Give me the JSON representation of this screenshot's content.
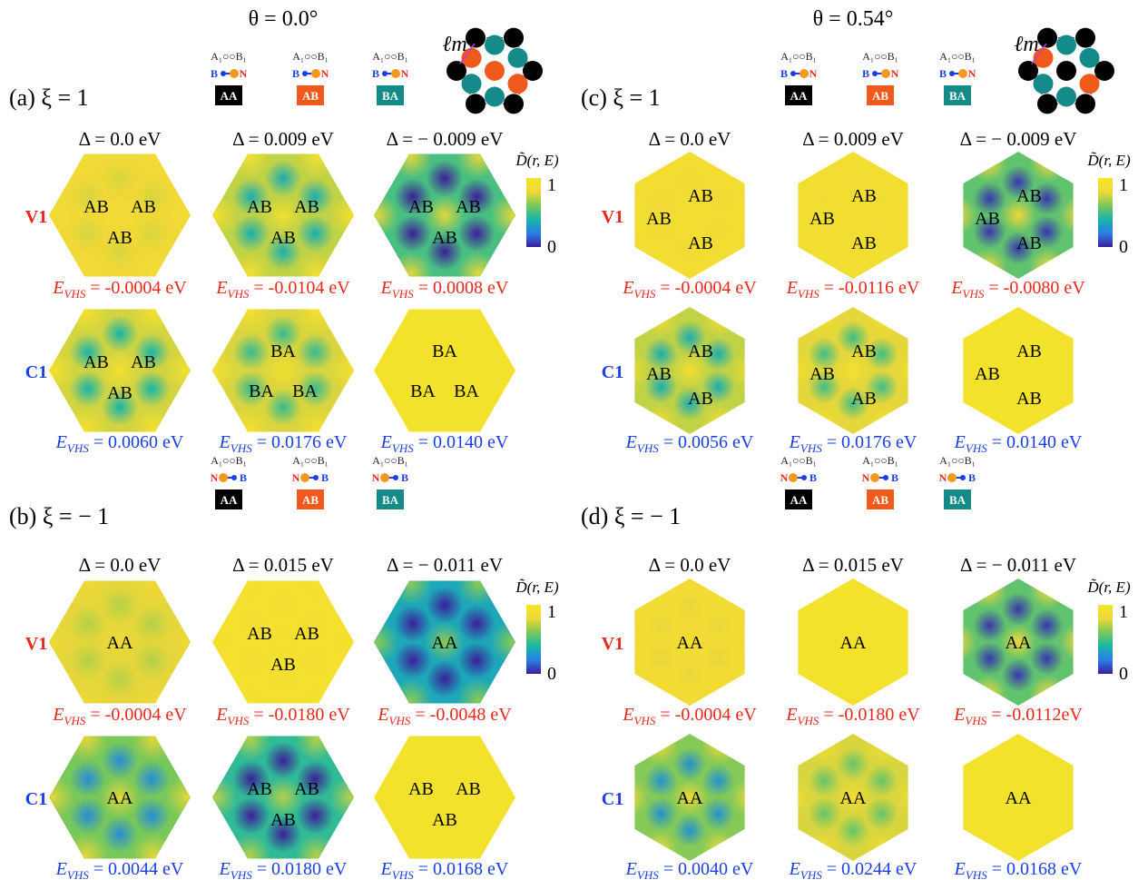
{
  "colors": {
    "v_label": "#e8281a",
    "c_label": "#1a3fe6",
    "aa_box": "#000000",
    "ab_box": "#ef5a1c",
    "ba_box": "#158a8a",
    "boron": "#1a3fe6",
    "nitrogen": "#e8281a",
    "colormap": [
      "#3b1f9a",
      "#2a7ee6",
      "#18b5a8",
      "#79c85a",
      "#f0d838",
      "#f4e42a"
    ]
  },
  "colorbar": {
    "label": "D̃(r, E)",
    "max": "1",
    "min": "0"
  },
  "panels": [
    {
      "id": "a",
      "theta": "θ = 0.0°",
      "label": "(a) ξ = 1",
      "legend": {
        "lattice": "A₁○○B₁",
        "bn": "B ●—● N",
        "boxes": [
          "AA",
          "AB",
          "BA"
        ]
      },
      "lattice_label": "ℓm",
      "deltas": [
        "Δ = 0.0 eV",
        "Δ = 0.009 eV",
        "Δ = − 0.009 eV"
      ],
      "rows": [
        {
          "name": "V1",
          "cells": [
            {
              "labels": [
                "AB",
                "AB",
                "AB"
              ],
              "evhs": "EVHS = -0.0004 eV",
              "level": 0.82,
              "contrast": 0.06
            },
            {
              "labels": [
                "AB",
                "AB",
                "AB"
              ],
              "evhs": "EVHS = -0.0104 eV",
              "level": 0.72,
              "contrast": 0.35
            },
            {
              "labels": [
                "AB",
                "AB",
                "AB"
              ],
              "evhs": "EVHS = 0.0008 eV",
              "level": 0.5,
              "contrast": 0.55
            }
          ]
        },
        {
          "name": "C1",
          "cells": [
            {
              "labels": [
                "AB",
                "AB",
                "AB"
              ],
              "evhs": "EVHS = 0.0060 eV",
              "level": 0.75,
              "contrast": 0.35
            },
            {
              "labels": [
                "BA",
                "BA",
                "BA"
              ],
              "evhs": "EVHS = 0.0176 eV",
              "level": 0.76,
              "contrast": 0.3
            },
            {
              "labels": [
                "BA",
                "BA",
                "BA"
              ],
              "evhs": "EVHS = 0.0140 eV",
              "level": 0.97,
              "contrast": 0.0
            }
          ]
        }
      ]
    },
    {
      "id": "b",
      "label": "(b) ξ = − 1",
      "legend": {
        "lattice": "A₁○○B₁",
        "bn": "N ●—● B",
        "boxes": [
          "AA",
          "AB",
          "BA"
        ]
      },
      "deltas": [
        "Δ = 0.0 eV",
        "Δ = 0.015 eV",
        "Δ = − 0.011 eV"
      ],
      "rows": [
        {
          "name": "V1",
          "cells": [
            {
              "labels": [
                "AA"
              ],
              "evhs": "EVHS = -0.0004 eV",
              "level": 0.78,
              "contrast": 0.08
            },
            {
              "labels": [
                "AB",
                "AB",
                "AB"
              ],
              "evhs": "EVHS = -0.0180 eV",
              "level": 0.93,
              "contrast": 0.03
            },
            {
              "labels": [
                "AA"
              ],
              "evhs": "EVHS = -0.0048 eV",
              "level": 0.35,
              "contrast": 0.55
            }
          ]
        },
        {
          "name": "C1",
          "cells": [
            {
              "labels": [
                "AA"
              ],
              "evhs": "EVHS = 0.0044 eV",
              "level": 0.6,
              "contrast": 0.35
            },
            {
              "labels": [
                "AB",
                "AB",
                "AB"
              ],
              "evhs": "EVHS = 0.0180 eV",
              "level": 0.45,
              "contrast": 0.5
            },
            {
              "labels": [
                "AB",
                "AB",
                "AB"
              ],
              "evhs": "EVHS = 0.0168 eV",
              "level": 0.97,
              "contrast": 0.0
            }
          ]
        }
      ]
    },
    {
      "id": "c",
      "theta": "θ = 0.54°",
      "label": "(c) ξ = 1",
      "legend": {
        "lattice": "A₁○○B₁",
        "bn": "B ●—● N",
        "boxes": [
          "AA",
          "AB",
          "BA"
        ]
      },
      "lattice_label": "ℓm",
      "deltas": [
        "Δ = 0.0 eV",
        "Δ = 0.009 eV",
        "Δ = − 0.009 eV"
      ],
      "rows": [
        {
          "name": "V1",
          "cells": [
            {
              "labels": [
                "AB",
                "AB",
                "AB"
              ],
              "evhs": "EVHS = -0.0004 eV",
              "level": 0.88,
              "contrast": 0.04
            },
            {
              "labels": [
                "AB",
                "AB",
                "AB"
              ],
              "evhs": "EVHS = -0.0116 eV",
              "level": 0.9,
              "contrast": 0.04
            },
            {
              "labels": [
                "AB",
                "AB",
                "AB"
              ],
              "evhs": "EVHS = -0.0080 eV",
              "level": 0.55,
              "contrast": 0.5
            }
          ]
        },
        {
          "name": "C1",
          "cells": [
            {
              "labels": [
                "AB",
                "AB",
                "AB"
              ],
              "evhs": "EVHS = 0.0056 eV",
              "level": 0.72,
              "contrast": 0.35
            },
            {
              "labels": [
                "AB",
                "AB",
                "AB"
              ],
              "evhs": "EVHS = 0.0176 eV",
              "level": 0.78,
              "contrast": 0.3
            },
            {
              "labels": [
                "AB",
                "AB",
                "AB"
              ],
              "evhs": "EVHS = 0.0140 eV",
              "level": 0.97,
              "contrast": 0.0
            }
          ]
        }
      ]
    },
    {
      "id": "d",
      "label": "(d) ξ = − 1",
      "legend": {
        "lattice": "A₁○○B₁",
        "bn": "N ●—● B",
        "boxes": [
          "AA",
          "AB",
          "BA"
        ]
      },
      "deltas": [
        "Δ = 0.0 eV",
        "Δ = 0.015 eV",
        "Δ = − 0.011 eV"
      ],
      "rows": [
        {
          "name": "V1",
          "cells": [
            {
              "labels": [
                "AA"
              ],
              "evhs": "EVHS = -0.0004 eV",
              "level": 0.85,
              "contrast": 0.06
            },
            {
              "labels": [
                "AA"
              ],
              "evhs": "EVHS = -0.0180 eV",
              "level": 0.97,
              "contrast": 0.0
            },
            {
              "labels": [
                "AA"
              ],
              "evhs": "EVHS = -0.0112eV",
              "level": 0.55,
              "contrast": 0.5
            }
          ]
        },
        {
          "name": "C1",
          "cells": [
            {
              "labels": [
                "AA"
              ],
              "evhs": "EVHS = 0.0040 eV",
              "level": 0.62,
              "contrast": 0.35
            },
            {
              "labels": [
                "AA"
              ],
              "evhs": "EVHS = 0.0244 eV",
              "level": 0.76,
              "contrast": 0.2
            },
            {
              "labels": [
                "AA"
              ],
              "evhs": "EVHS = 0.0168 eV",
              "level": 0.97,
              "contrast": 0.0
            }
          ]
        }
      ]
    }
  ]
}
